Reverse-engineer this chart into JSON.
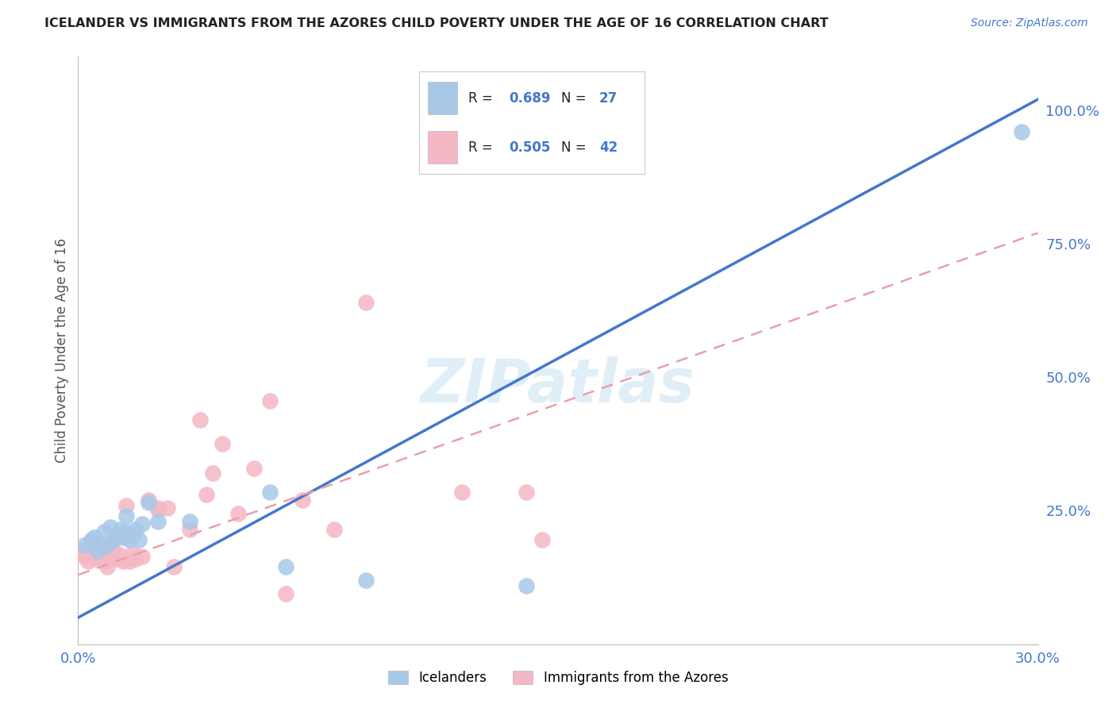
{
  "title": "ICELANDER VS IMMIGRANTS FROM THE AZORES CHILD POVERTY UNDER THE AGE OF 16 CORRELATION CHART",
  "source": "Source: ZipAtlas.com",
  "ylabel": "Child Poverty Under the Age of 16",
  "xlim": [
    0.0,
    0.3
  ],
  "ylim": [
    0.0,
    1.1
  ],
  "xticks": [
    0.0,
    0.05,
    0.1,
    0.15,
    0.2,
    0.25,
    0.3
  ],
  "xticklabels": [
    "0.0%",
    "",
    "",
    "",
    "",
    "",
    "30.0%"
  ],
  "yticks_right": [
    0.0,
    0.25,
    0.5,
    0.75,
    1.0
  ],
  "yticklabels_right": [
    "",
    "25.0%",
    "50.0%",
    "75.0%",
    "100.0%"
  ],
  "legend_labels": [
    "Icelanders",
    "Immigrants from the Azores"
  ],
  "r_blue": "0.689",
  "n_blue": "27",
  "r_pink": "0.505",
  "n_pink": "42",
  "blue_color": "#a8c8e8",
  "pink_color": "#f4b8c4",
  "blue_line_color": "#4477cc",
  "pink_line_color": "#e8a0a8",
  "watermark": "ZIPatlas",
  "blue_scatter_x": [
    0.002,
    0.004,
    0.005,
    0.006,
    0.007,
    0.008,
    0.009,
    0.01,
    0.011,
    0.012,
    0.013,
    0.014,
    0.015,
    0.015,
    0.016,
    0.017,
    0.018,
    0.019,
    0.02,
    0.022,
    0.025,
    0.035,
    0.06,
    0.065,
    0.09,
    0.14,
    0.295
  ],
  "blue_scatter_y": [
    0.185,
    0.195,
    0.2,
    0.175,
    0.185,
    0.21,
    0.185,
    0.22,
    0.195,
    0.205,
    0.215,
    0.2,
    0.24,
    0.21,
    0.195,
    0.205,
    0.215,
    0.195,
    0.225,
    0.265,
    0.23,
    0.23,
    0.285,
    0.145,
    0.12,
    0.11,
    0.96
  ],
  "pink_scatter_x": [
    0.001,
    0.002,
    0.003,
    0.004,
    0.005,
    0.005,
    0.006,
    0.006,
    0.007,
    0.008,
    0.009,
    0.01,
    0.01,
    0.011,
    0.012,
    0.013,
    0.014,
    0.015,
    0.016,
    0.017,
    0.018,
    0.02,
    0.022,
    0.025,
    0.025,
    0.028,
    0.03,
    0.035,
    0.038,
    0.04,
    0.042,
    0.045,
    0.05,
    0.055,
    0.06,
    0.065,
    0.07,
    0.08,
    0.09,
    0.12,
    0.14,
    0.145
  ],
  "pink_scatter_y": [
    0.175,
    0.165,
    0.155,
    0.17,
    0.19,
    0.16,
    0.165,
    0.17,
    0.18,
    0.155,
    0.145,
    0.16,
    0.17,
    0.175,
    0.16,
    0.168,
    0.155,
    0.26,
    0.155,
    0.17,
    0.16,
    0.165,
    0.27,
    0.252,
    0.255,
    0.255,
    0.145,
    0.215,
    0.42,
    0.28,
    0.32,
    0.375,
    0.245,
    0.33,
    0.455,
    0.095,
    0.27,
    0.215,
    0.64,
    0.285,
    0.285,
    0.195
  ],
  "blue_line_x0": 0.0,
  "blue_line_y0": 0.05,
  "blue_line_x1": 0.3,
  "blue_line_y1": 1.02,
  "pink_line_x0": 0.0,
  "pink_line_y0": 0.13,
  "pink_line_x1": 0.3,
  "pink_line_y1": 0.77,
  "grid_color": "#cccccc",
  "background_color": "#ffffff",
  "title_color": "#222222",
  "source_color": "#4477cc",
  "axis_label_color": "#555555",
  "tick_color": "#4477cc"
}
